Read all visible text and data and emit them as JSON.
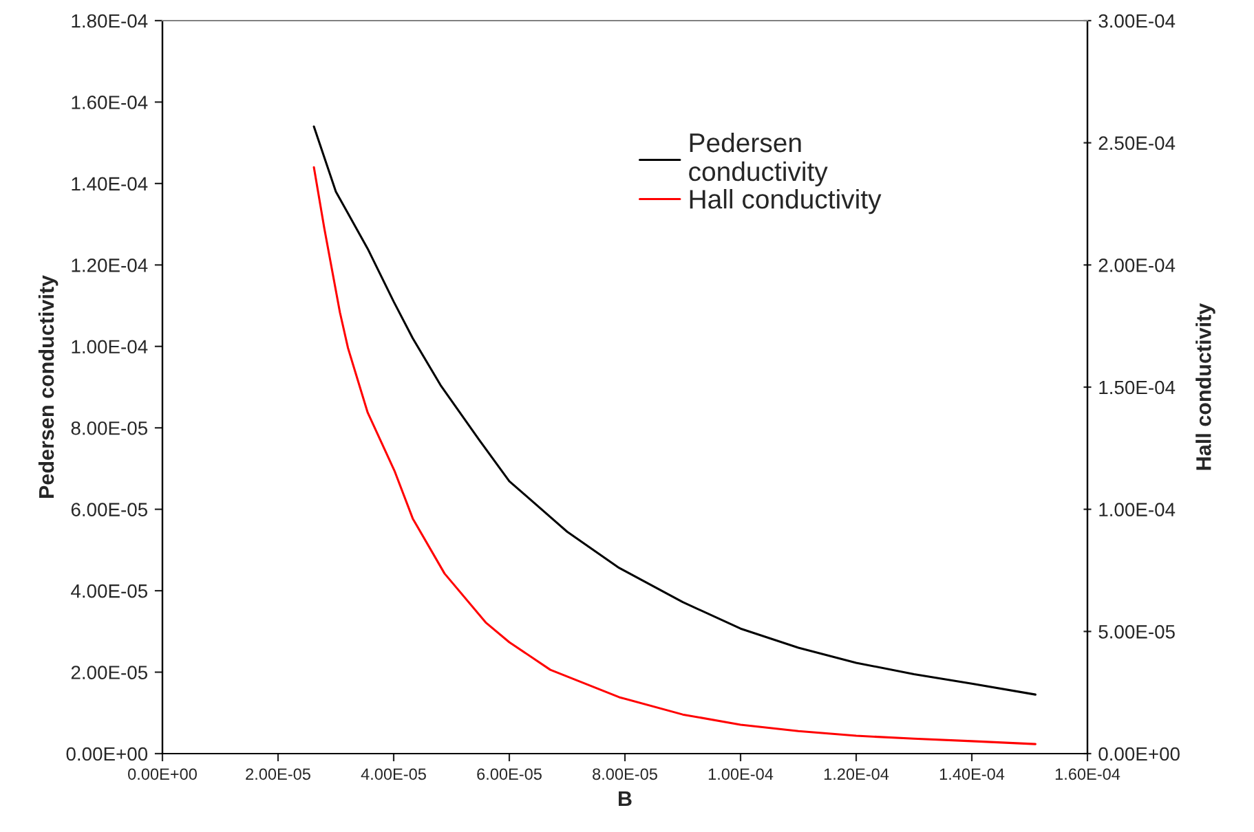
{
  "chart_data": {
    "type": "line",
    "xlabel": "B",
    "ylabel": "Pedersen conductivity",
    "y2label": "Hall conductivity",
    "series": [
      {
        "name": "Pedersen\nconductivity",
        "color": "#000000",
        "x": [
          2.62e-05,
          3e-05,
          3.55e-05,
          4e-05,
          4.33e-05,
          4.81e-05,
          5.48e-05,
          6e-05,
          7e-05,
          7.9e-05,
          9e-05,
          0.0001,
          0.00011,
          0.00012,
          0.00013,
          0.00014,
          0.000151
        ],
        "values": [
          0.000154,
          0.000138,
          0.000124,
          0.000111,
          0.000102,
          9.05e-05,
          7.7e-05,
          6.69e-05,
          5.45e-05,
          4.56e-05,
          3.72e-05,
          3.07e-05,
          2.6e-05,
          2.23e-05,
          1.95e-05,
          1.72e-05,
          1.45e-05
        ]
      },
      {
        "name": "Hall conductivity",
        "color": "#ff0000",
        "axis": "y2",
        "x": [
          2.62e-05,
          2.8e-05,
          3.07e-05,
          3.21e-05,
          3.55e-05,
          4.02e-05,
          4.33e-05,
          4.88e-05,
          5.6e-05,
          6e-05,
          6.71e-05,
          7.9e-05,
          9e-05,
          0.0001,
          0.00011,
          0.00012,
          0.00013,
          0.00014,
          0.000151
        ],
        "values": [
          0.00024,
          0.000215,
          0.0001806,
          0.000166,
          0.0001396,
          0.0001154,
          9.62e-05,
          7.37e-05,
          5.35e-05,
          4.56e-05,
          3.43e-05,
          2.31e-05,
          1.6e-05,
          1.18e-05,
          9.2e-06,
          7.3e-06,
          6.1e-06,
          5.1e-06,
          3.9e-06
        ]
      }
    ],
    "xlim": [
      0,
      0.00016
    ],
    "xticks": [
      {
        "value": 0,
        "label": "0.00E+00"
      },
      {
        "value": 2e-05,
        "label": "2.00E-05"
      },
      {
        "value": 4e-05,
        "label": "4.00E-05"
      },
      {
        "value": 6e-05,
        "label": "6.00E-05"
      },
      {
        "value": 8e-05,
        "label": "8.00E-05"
      },
      {
        "value": 0.0001,
        "label": "1.00E-04"
      },
      {
        "value": 0.00012,
        "label": "1.20E-04"
      },
      {
        "value": 0.00014,
        "label": "1.40E-04"
      },
      {
        "value": 0.00016,
        "label": "1.60E-04"
      }
    ],
    "ylim": [
      0,
      0.00018
    ],
    "yticks": [
      {
        "value": 0,
        "label": "0.00E+00"
      },
      {
        "value": 2e-05,
        "label": "2.00E-05"
      },
      {
        "value": 4e-05,
        "label": "4.00E-05"
      },
      {
        "value": 6e-05,
        "label": "6.00E-05"
      },
      {
        "value": 8e-05,
        "label": "8.00E-05"
      },
      {
        "value": 0.0001,
        "label": "1.00E-04"
      },
      {
        "value": 0.00012,
        "label": "1.20E-04"
      },
      {
        "value": 0.00014,
        "label": "1.40E-04"
      },
      {
        "value": 0.00016,
        "label": "1.60E-04"
      },
      {
        "value": 0.00018,
        "label": "1.80E-04"
      }
    ],
    "y2lim": [
      0,
      0.0003
    ],
    "y2ticks": [
      {
        "value": 0,
        "label": "0.00E+00"
      },
      {
        "value": 5e-05,
        "label": "5.00E-05"
      },
      {
        "value": 0.0001,
        "label": "1.00E-04"
      },
      {
        "value": 0.00015,
        "label": "1.50E-04"
      },
      {
        "value": 0.0002,
        "label": "2.00E-04"
      },
      {
        "value": 0.00025,
        "label": "2.50E-04"
      },
      {
        "value": 0.0003,
        "label": "3.00E-04"
      }
    ],
    "grid": false,
    "legend": "top",
    "marker": "none",
    "line_style": "solid"
  }
}
